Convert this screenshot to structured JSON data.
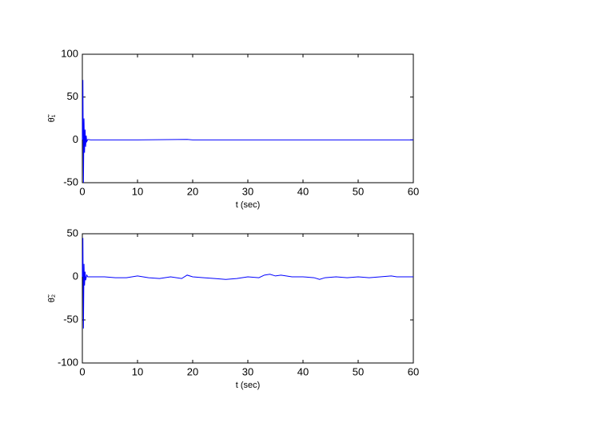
{
  "chart_data": [
    {
      "type": "line",
      "color": "#0000ff",
      "xlabel": "t (sec)",
      "ylabel": "θ̃₁",
      "x": [
        0,
        0.1,
        0.2,
        0.3,
        0.4,
        0.5,
        0.6,
        0.7,
        0.8,
        1,
        1.5,
        2,
        5,
        10,
        19,
        20,
        30,
        40,
        50,
        60
      ],
      "values": [
        0,
        70,
        -50,
        25,
        -15,
        12,
        -8,
        5,
        -2,
        0.5,
        0,
        0,
        0,
        0,
        0.5,
        0,
        0,
        0,
        0,
        0
      ],
      "xlim": [
        0,
        60
      ],
      "ylim": [
        -50,
        100
      ],
      "xticks": [
        0,
        10,
        20,
        30,
        40,
        50,
        60
      ],
      "yticks": [
        -50,
        0,
        50,
        100
      ]
    },
    {
      "type": "line",
      "color": "#0000ff",
      "xlabel": "t (sec)",
      "ylabel": "θ̃₂",
      "x": [
        0,
        0.1,
        0.2,
        0.3,
        0.4,
        0.5,
        0.6,
        0.8,
        1,
        2,
        4,
        6,
        8,
        10,
        12,
        14,
        16,
        18,
        19,
        20,
        22,
        24,
        26,
        28,
        30,
        32,
        33,
        34,
        35,
        36,
        38,
        40,
        42,
        43,
        44,
        46,
        48,
        50,
        52,
        54,
        56,
        57,
        60
      ],
      "values": [
        0,
        45,
        -60,
        15,
        -10,
        6,
        -4,
        2,
        0,
        0,
        0,
        -1,
        -1,
        1,
        -1,
        -2,
        0,
        -2,
        2,
        0,
        -1,
        -2,
        -3,
        -2,
        0,
        -1,
        2,
        3,
        1,
        2,
        0,
        0,
        -1,
        -3,
        -1,
        0,
        -1,
        0,
        -1,
        0,
        1,
        0,
        0
      ],
      "xlim": [
        0,
        60
      ],
      "ylim": [
        -100,
        50
      ],
      "xticks": [
        0,
        10,
        20,
        30,
        40,
        50,
        60
      ],
      "yticks": [
        -100,
        -50,
        0,
        50
      ]
    }
  ]
}
